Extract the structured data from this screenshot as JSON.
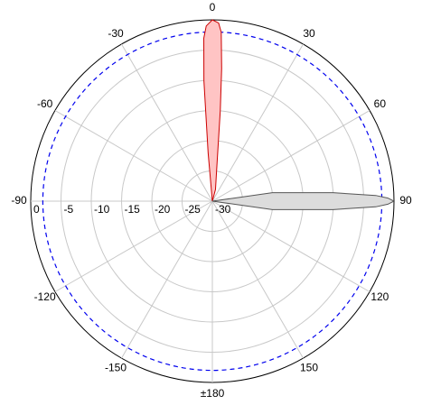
{
  "chart_data": {
    "type": "polar",
    "rlim": [
      -30,
      0
    ],
    "rticks": [
      0,
      -5,
      -10,
      -15,
      -20,
      -25,
      -30
    ],
    "thetaticks": [
      0,
      30,
      60,
      90,
      120,
      150,
      {
        "value": 180,
        "label": "±180"
      },
      -150,
      -120,
      -90,
      -60,
      -30
    ],
    "grid": true,
    "reference_circle": {
      "value": -2,
      "color": "#0000ee"
    },
    "series": [
      {
        "color": "#cc0000",
        "fill": "#ffc4c4",
        "theta": [
          -10,
          -5,
          -4,
          -3,
          -2,
          0,
          2,
          3,
          4,
          5,
          8,
          15,
          25
        ],
        "values": [
          -30,
          -22,
          -10,
          -3,
          -1,
          0,
          -0.5,
          -2,
          -8,
          -15,
          -25,
          -28,
          -30
        ]
      },
      {
        "color": "#555555",
        "fill": "#dcdcdc",
        "theta": [
          78,
          82,
          86,
          88,
          89,
          90,
          91,
          92,
          94,
          98,
          102
        ],
        "values": [
          -30,
          -20,
          -10,
          -3,
          -1,
          0,
          -1,
          -3,
          -10,
          -20,
          -30
        ]
      }
    ]
  }
}
